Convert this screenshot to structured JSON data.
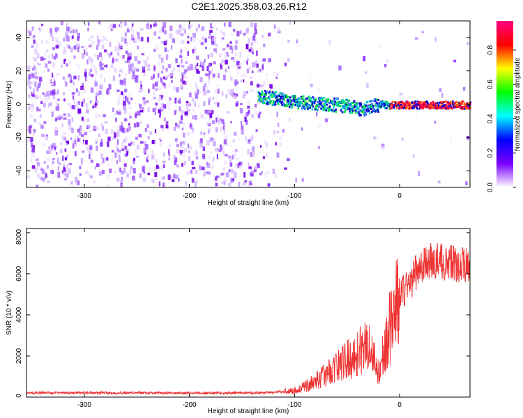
{
  "title": "C2E1.2025.358.03.26.R12",
  "chart_data": [
    {
      "type": "heatmap",
      "title": "C2E1.2025.358.03.26.R12",
      "xlabel": "Height of straight line (km)",
      "ylabel": "Frequency (Hz)",
      "xlim": [
        -355,
        67
      ],
      "ylim": [
        -50,
        50
      ],
      "x_ticks": [
        -300,
        -200,
        -100,
        0
      ],
      "x_tick_labels": [
        "-300",
        "-200",
        "-100",
        "0"
      ],
      "y_ticks": [
        -40,
        -20,
        0,
        20,
        40
      ],
      "y_tick_labels": [
        "-40",
        "-20",
        "0",
        "20",
        "40"
      ],
      "colorbar": {
        "label": "Normalized spectral amplitude",
        "range": [
          0,
          0.97
        ],
        "ticks": [
          0.0,
          0.2,
          0.4,
          0.6,
          0.8
        ],
        "tick_labels": [
          "0.0",
          "0.2",
          "0.4",
          "0.6",
          "0.8"
        ],
        "colormap": [
          "#ffffff",
          "#7b00ff",
          "#0000ff",
          "#00ffff",
          "#00ff00",
          "#ffff00",
          "#ff0000",
          "#ff0080"
        ]
      },
      "signal_track": {
        "start_x": -135,
        "end_x": 67,
        "points": [
          [
            -135,
            5
          ],
          [
            -120,
            4
          ],
          [
            -100,
            2
          ],
          [
            -80,
            1
          ],
          [
            -60,
            0
          ],
          [
            -45,
            -1
          ],
          [
            -35,
            -3
          ],
          [
            -25,
            0
          ],
          [
            -10,
            0
          ],
          [
            0,
            0
          ],
          [
            20,
            0
          ],
          [
            40,
            0
          ],
          [
            67,
            0
          ]
        ],
        "peak_amplitude_x": [
          -10,
          67
        ]
      }
    },
    {
      "type": "line",
      "xlabel": "Height of straight line (km)",
      "ylabel": "SNR (10 * v/v)",
      "xlim": [
        -355,
        67
      ],
      "ylim": [
        0,
        8200
      ],
      "x_ticks": [
        -300,
        -200,
        -100,
        0
      ],
      "x_tick_labels": [
        "-300",
        "-200",
        "-100",
        "0"
      ],
      "y_ticks": [
        0,
        2000,
        4000,
        6000,
        8000
      ],
      "y_tick_labels": [
        "0",
        "2000",
        "4000",
        "6000",
        "8000"
      ],
      "line_color": "#ee3333",
      "series": [
        {
          "name": "SNR",
          "x": [
            -355,
            -300,
            -250,
            -200,
            -150,
            -120,
            -100,
            -90,
            -80,
            -70,
            -60,
            -50,
            -40,
            -30,
            -20,
            -10,
            -5,
            0,
            10,
            20,
            30,
            40,
            50,
            60,
            67
          ],
          "y": [
            200,
            210,
            200,
            195,
            200,
            230,
            320,
            500,
            800,
            1100,
            1500,
            1800,
            2100,
            2700,
            1200,
            3200,
            4200,
            4900,
            5600,
            6400,
            6600,
            6600,
            6500,
            6400,
            6500
          ]
        }
      ]
    }
  ]
}
